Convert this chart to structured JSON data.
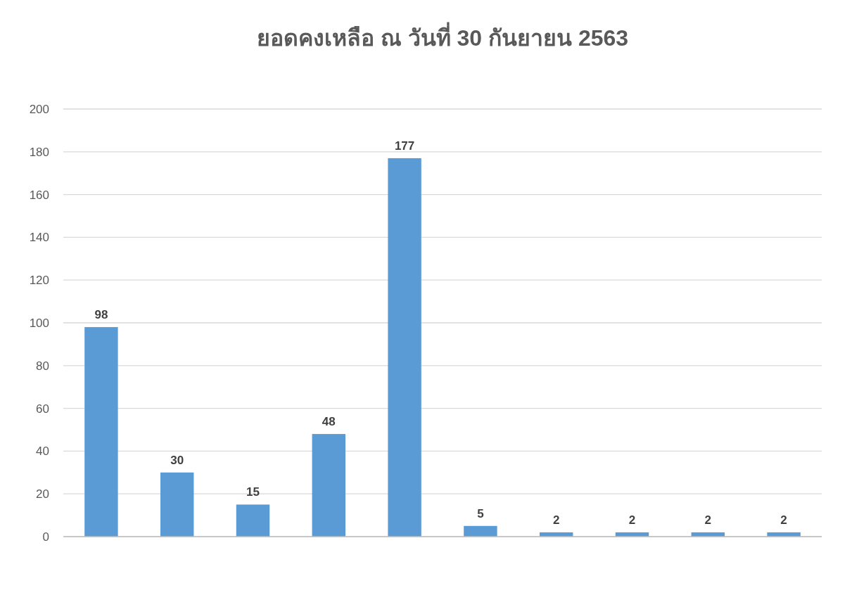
{
  "chart_data": {
    "type": "bar",
    "title": "ยอดคงเหลือ ณ วันที่ 30 กันยายน 2563",
    "categories": [
      null,
      null,
      null,
      null,
      null,
      null,
      null,
      null,
      null,
      null
    ],
    "values": [
      98,
      30,
      15,
      48,
      177,
      5,
      2,
      2,
      2,
      2
    ],
    "color": "#5b9bd5",
    "ylim": [
      0,
      200
    ],
    "yticks": [
      0,
      20,
      40,
      60,
      80,
      100,
      120,
      140,
      160,
      180,
      200
    ],
    "grid": "y",
    "data_labels": true
  }
}
